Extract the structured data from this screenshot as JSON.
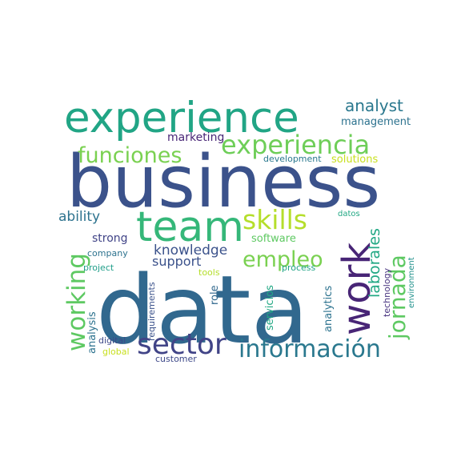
{
  "word_cloud": {
    "words": [
      {
        "text": "business",
        "color": "#3b528b"
      },
      {
        "text": "data",
        "color": "#31688e"
      },
      {
        "text": "experience",
        "color": "#21a585"
      },
      {
        "text": "team",
        "color": "#35b779"
      },
      {
        "text": "work",
        "color": "#482576"
      },
      {
        "text": "experiencia",
        "color": "#6ece58"
      },
      {
        "text": "funciones",
        "color": "#7ad151"
      },
      {
        "text": "skills",
        "color": "#b5de2b"
      },
      {
        "text": "sector",
        "color": "#414487"
      },
      {
        "text": "información",
        "color": "#2a788e"
      },
      {
        "text": "working",
        "color": "#5ec962"
      },
      {
        "text": "empleo",
        "color": "#7ad151"
      },
      {
        "text": "jornada",
        "color": "#5ec962"
      },
      {
        "text": "laborales",
        "color": "#22a884"
      },
      {
        "text": "analyst",
        "color": "#2a788e"
      },
      {
        "text": "management",
        "color": "#2c728e"
      },
      {
        "text": "knowledge",
        "color": "#3b528b"
      },
      {
        "text": "support",
        "color": "#3b528b"
      },
      {
        "text": "ability",
        "color": "#2c728e"
      },
      {
        "text": "strong",
        "color": "#414487"
      },
      {
        "text": "software",
        "color": "#5ec962"
      },
      {
        "text": "marketing",
        "color": "#482576"
      },
      {
        "text": "development",
        "color": "#2a788e"
      },
      {
        "text": "solutions",
        "color": "#c8e020"
      },
      {
        "text": "company",
        "color": "#2c728e"
      },
      {
        "text": "project",
        "color": "#1f9e89"
      },
      {
        "text": "process",
        "color": "#20a386"
      },
      {
        "text": "tools",
        "color": "#b5de2b"
      },
      {
        "text": "datos",
        "color": "#22a884"
      },
      {
        "text": "analysis",
        "color": "#2c728e"
      },
      {
        "text": "digital",
        "color": "#3e4989"
      },
      {
        "text": "global",
        "color": "#c8e020"
      },
      {
        "text": "customer",
        "color": "#3e4989"
      },
      {
        "text": "requirements",
        "color": "#3b528b"
      },
      {
        "text": "role",
        "color": "#31688e"
      },
      {
        "text": "servicios",
        "color": "#22a884"
      },
      {
        "text": "analytics",
        "color": "#2c728e"
      },
      {
        "text": "technology",
        "color": "#46327e"
      },
      {
        "text": "environment",
        "color": "#21918c"
      }
    ]
  }
}
